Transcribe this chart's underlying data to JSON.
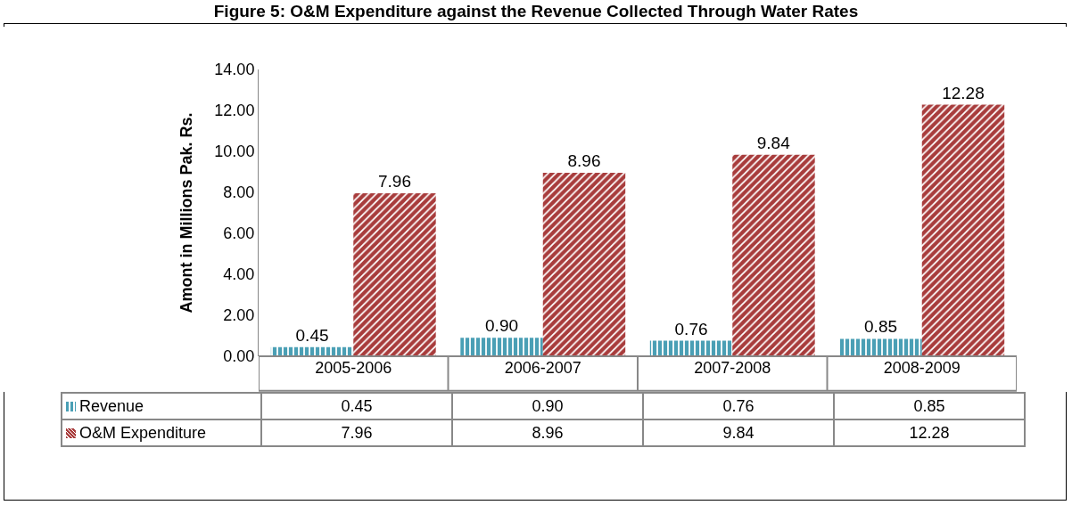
{
  "chart_data": {
    "type": "bar",
    "title": "Figure 5: O&M Expenditure against the Revenue Collected Through Water Rates",
    "ylabel": "Amont in Millions Pak. Rs.",
    "categories": [
      "2005-2006",
      "2006-2007",
      "2007-2008",
      "2008-2009"
    ],
    "series": [
      {
        "name": "Revenue",
        "color": "#4a9fb5",
        "values": [
          0.45,
          0.9,
          0.76,
          0.85
        ],
        "value_labels": [
          "0.45",
          "0.90",
          "0.76",
          "0.85"
        ]
      },
      {
        "name": "O&M Expenditure",
        "color": "#a83c3c",
        "values": [
          7.96,
          8.96,
          9.84,
          12.28
        ],
        "value_labels": [
          "7.96",
          "8.96",
          "9.84",
          "12.28"
        ]
      }
    ],
    "ylim": [
      0,
      14
    ],
    "yticks": [
      {
        "value": 0,
        "label": "0.00"
      },
      {
        "value": 2,
        "label": "2.00"
      },
      {
        "value": 4,
        "label": "4.00"
      },
      {
        "value": 6,
        "label": "6.00"
      },
      {
        "value": 8,
        "label": "8.00"
      },
      {
        "value": 10,
        "label": "10.00"
      },
      {
        "value": 12,
        "label": "12.00"
      },
      {
        "value": 14,
        "label": "14.00"
      }
    ],
    "legend": "bottom",
    "grid": false
  }
}
